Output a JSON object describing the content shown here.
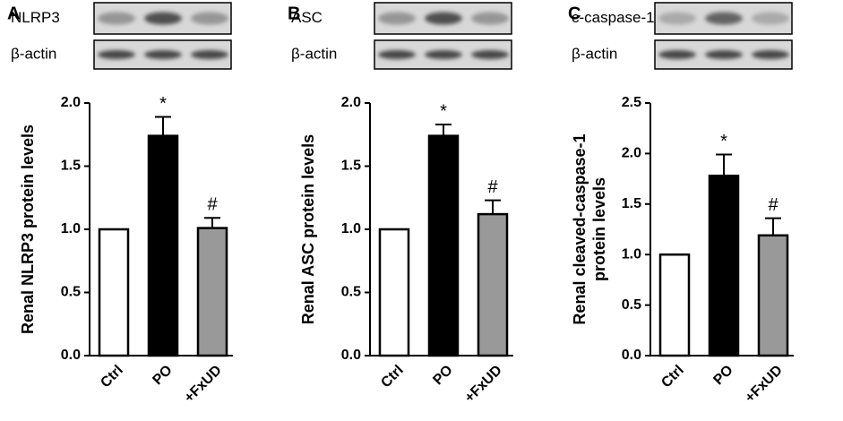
{
  "chart_data": [
    {
      "type": "bar",
      "panel": "A",
      "blot_labels": [
        "NLRP3",
        "β-actin"
      ],
      "ylabel": [
        "Renal NLRP3 protein levels"
      ],
      "categories": [
        "Ctrl",
        "PO",
        "+FxUD"
      ],
      "values": [
        1.0,
        1.74,
        1.01
      ],
      "errors": [
        0,
        0.15,
        0.08
      ],
      "colors": [
        "#ffffff",
        "#000000",
        "#999999"
      ],
      "annotations": [
        null,
        "*",
        "#"
      ],
      "ylim": [
        0,
        2.0
      ],
      "yticks": [
        {
          "value": 0,
          "label": "0.0"
        },
        {
          "value": 0.5,
          "label": "0.5"
        },
        {
          "value": 1,
          "label": "1.0"
        },
        {
          "value": 1.5,
          "label": "1.5"
        },
        {
          "value": 2,
          "label": "2.0"
        }
      ]
    },
    {
      "type": "bar",
      "panel": "B",
      "blot_labels": [
        "ASC",
        "β-actin"
      ],
      "ylabel": [
        "Renal ASC protein levels"
      ],
      "categories": [
        "Ctrl",
        "PO",
        "+FxUD"
      ],
      "values": [
        1.0,
        1.74,
        1.12
      ],
      "errors": [
        0,
        0.09,
        0.11
      ],
      "colors": [
        "#ffffff",
        "#000000",
        "#999999"
      ],
      "annotations": [
        null,
        "*",
        "#"
      ],
      "ylim": [
        0,
        2.0
      ],
      "yticks": [
        {
          "value": 0,
          "label": "0.0"
        },
        {
          "value": 0.5,
          "label": "0.5"
        },
        {
          "value": 1,
          "label": "1.0"
        },
        {
          "value": 1.5,
          "label": "1.5"
        },
        {
          "value": 2,
          "label": "2.0"
        }
      ]
    },
    {
      "type": "bar",
      "panel": "C",
      "blot_labels": [
        "c-caspase-1",
        "β-actin"
      ],
      "ylabel": [
        "Renal cleaved-caspase-1",
        "protein levels"
      ],
      "categories": [
        "Ctrl",
        "PO",
        "+FxUD"
      ],
      "values": [
        1.0,
        1.78,
        1.19
      ],
      "errors": [
        0,
        0.21,
        0.17
      ],
      "colors": [
        "#ffffff",
        "#000000",
        "#999999"
      ],
      "annotations": [
        null,
        "*",
        "#"
      ],
      "ylim": [
        0,
        2.5
      ],
      "yticks": [
        {
          "value": 0,
          "label": "0.0"
        },
        {
          "value": 0.5,
          "label": "0.5"
        },
        {
          "value": 1,
          "label": "1.0"
        },
        {
          "value": 1.5,
          "label": "1.5"
        },
        {
          "value": 2,
          "label": "2.0"
        },
        {
          "value": 2.5,
          "label": "2.5"
        }
      ]
    }
  ]
}
